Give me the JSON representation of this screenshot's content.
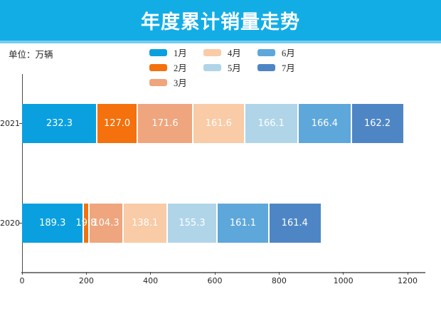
{
  "header": {
    "title": "年度累计销量走势",
    "background_color": "#13ade6",
    "accent_strip_color": "#79ccf0",
    "title_color": "#ffffff"
  },
  "unit_label": "单位：万辆",
  "chart_data": {
    "type": "bar",
    "orientation": "horizontal",
    "stacked": true,
    "title": "年度累计销量走势",
    "unit": "万辆",
    "categories": [
      "2021",
      "2020"
    ],
    "series": [
      {
        "name": "1月",
        "color": "#0aa0e0",
        "values": [
          232.3,
          189.3
        ]
      },
      {
        "name": "2月",
        "color": "#f4710d",
        "values": [
          127.0,
          19.8
        ]
      },
      {
        "name": "3月",
        "color": "#efa57d",
        "values": [
          171.6,
          104.3
        ]
      },
      {
        "name": "4月",
        "color": "#f9cba6",
        "values": [
          161.6,
          138.1
        ]
      },
      {
        "name": "5月",
        "color": "#b0d5e9",
        "values": [
          166.1,
          155.3
        ]
      },
      {
        "name": "6月",
        "color": "#5ea7db",
        "values": [
          166.4,
          161.1
        ]
      },
      {
        "name": "7月",
        "color": "#4e86c5",
        "values": [
          162.2,
          161.4
        ]
      }
    ],
    "x_ticks": [
      0,
      200,
      400,
      600,
      800,
      1000,
      1200
    ],
    "xlim": [
      0,
      1200
    ],
    "value_label_decimals": 1,
    "legend_position": "top-center",
    "legend_columns": [
      [
        0,
        1,
        2
      ],
      [
        3,
        4
      ],
      [
        5,
        6
      ]
    ],
    "grid": false
  }
}
